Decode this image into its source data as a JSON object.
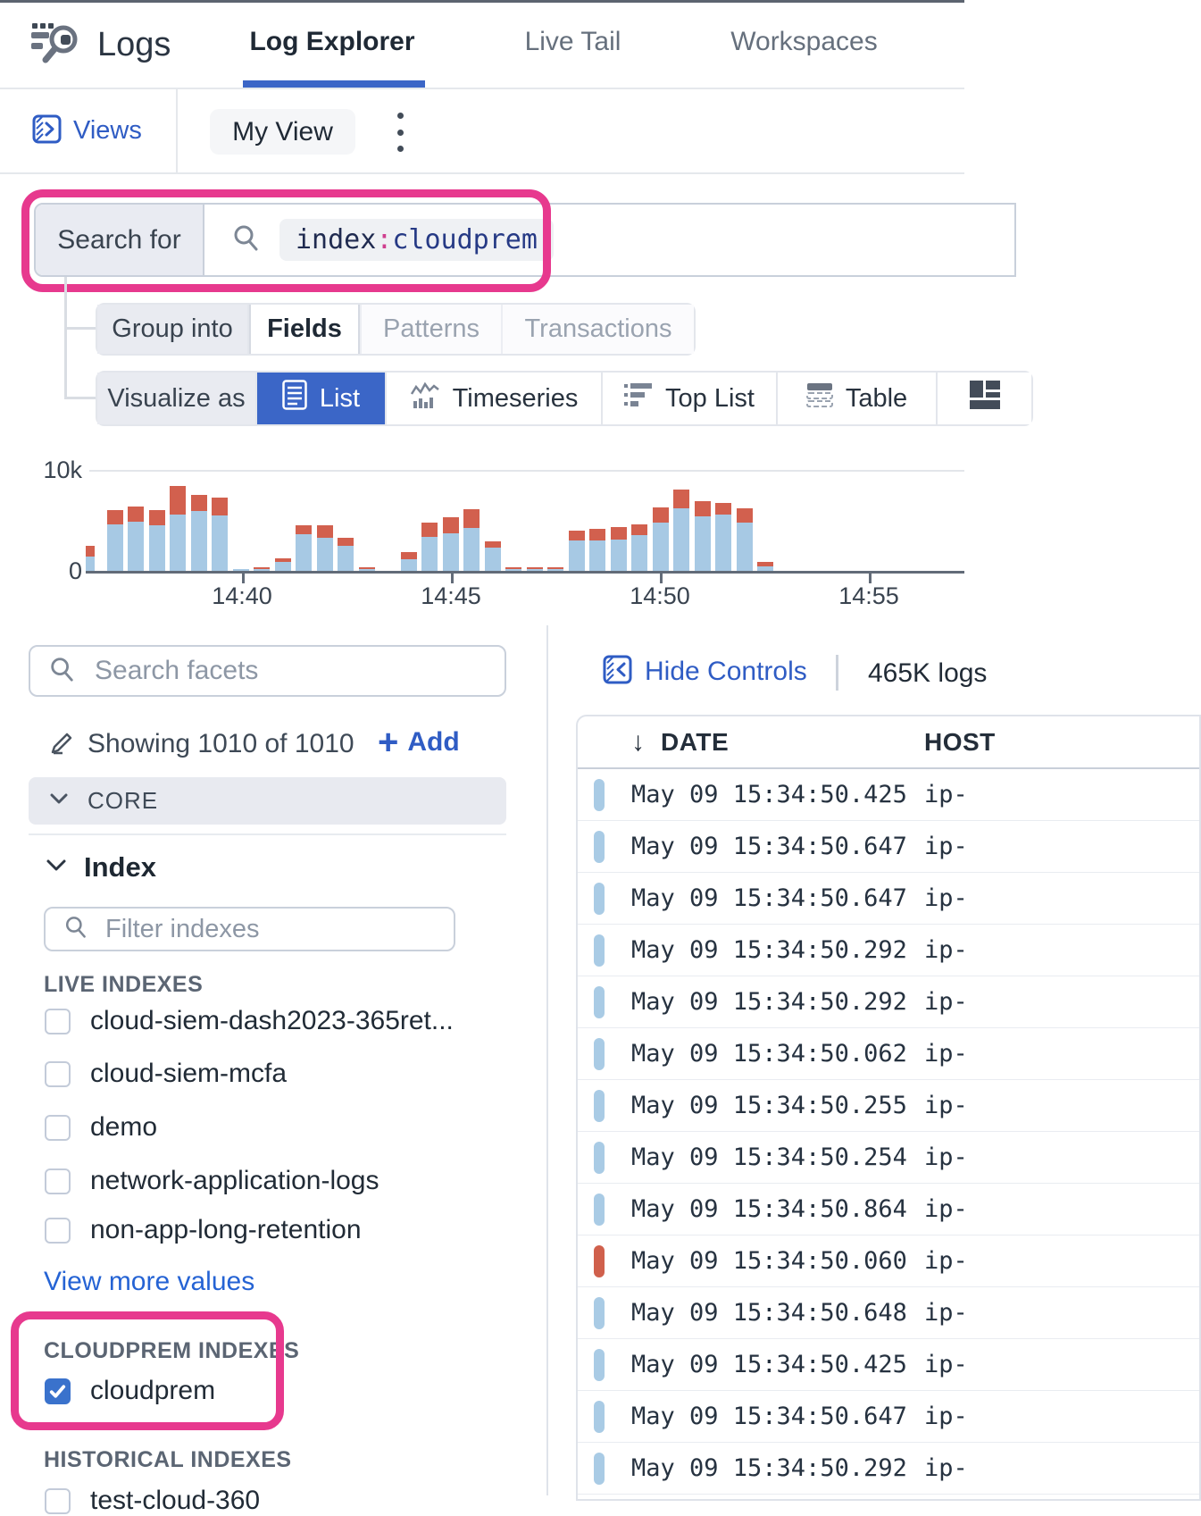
{
  "topnav": {
    "app_title": "Logs",
    "tabs": [
      {
        "label": "Log Explorer",
        "active": true
      },
      {
        "label": "Live Tail",
        "active": false
      },
      {
        "label": "Workspaces",
        "active": false
      }
    ]
  },
  "toolbar": {
    "views_label": "Views",
    "view_name": "My View"
  },
  "search": {
    "label": "Search for",
    "facet": "index",
    "separator": ":",
    "value": "cloudprem"
  },
  "group_row": {
    "label": "Group into",
    "options": [
      "Fields",
      "Patterns",
      "Transactions"
    ],
    "active": "Fields"
  },
  "viz_row": {
    "label": "Visualize as",
    "options": [
      "List",
      "Timeseries",
      "Top List",
      "Table"
    ],
    "active": "List"
  },
  "chart_data": {
    "type": "bar",
    "stacked": true,
    "ylim": [
      0,
      10000
    ],
    "y_tick_labels": [
      "0",
      "10k"
    ],
    "x_ticks": [
      "14:40",
      "14:45",
      "14:50",
      "14:55"
    ],
    "legend": "none",
    "series": [
      {
        "name": "info",
        "color": "#a7c9e4",
        "values": [
          1400,
          4500,
          4800,
          4400,
          5500,
          5800,
          5400,
          150,
          50,
          900,
          3600,
          3200,
          2400,
          50,
          0,
          1150,
          3300,
          3650,
          4200,
          2300,
          80,
          80,
          150,
          2950,
          2950,
          3000,
          3450,
          4700,
          6050,
          5300,
          5500,
          4700,
          400
        ]
      },
      {
        "name": "error",
        "color": "#d2604e",
        "values": [
          1000,
          1400,
          1500,
          1500,
          2800,
          1600,
          1700,
          0,
          150,
          350,
          900,
          1200,
          800,
          100,
          0,
          700,
          1400,
          1550,
          1850,
          650,
          70,
          70,
          150,
          950,
          1100,
          1200,
          1050,
          1500,
          1850,
          1500,
          1100,
          1350,
          400
        ]
      }
    ]
  },
  "facets": {
    "search_placeholder": "Search facets",
    "showing_text": "Showing 1010 of 1010",
    "add_label": "Add",
    "core_label": "CORE",
    "index_title": "Index",
    "filter_placeholder": "Filter indexes",
    "live_group_label": "LIVE INDEXES",
    "live_items": [
      {
        "label": "cloud-siem-dash2023-365ret...",
        "checked": false
      },
      {
        "label": "cloud-siem-mcfa",
        "checked": false
      },
      {
        "label": "demo",
        "checked": false
      },
      {
        "label": "network-application-logs",
        "checked": false
      },
      {
        "label": "non-app-long-retention",
        "checked": false
      }
    ],
    "view_more_label": "View more values",
    "cloudprem_group_label": "CLOUDPREM INDEXES",
    "cloudprem_items": [
      {
        "label": "cloudprem",
        "checked": true
      }
    ],
    "historical_group_label": "HISTORICAL INDEXES",
    "historical_items": [
      {
        "label": "test-cloud-360",
        "checked": false
      }
    ]
  },
  "results": {
    "hide_controls_label": "Hide Controls",
    "count_label": "465K logs",
    "columns": {
      "date": "DATE",
      "host": "HOST"
    },
    "rows": [
      {
        "date": "May 09 15:34:50.425",
        "host": "ip-",
        "status": "info"
      },
      {
        "date": "May 09 15:34:50.647",
        "host": "ip-",
        "status": "info"
      },
      {
        "date": "May 09 15:34:50.647",
        "host": "ip-",
        "status": "info"
      },
      {
        "date": "May 09 15:34:50.292",
        "host": "ip-",
        "status": "info"
      },
      {
        "date": "May 09 15:34:50.292",
        "host": "ip-",
        "status": "info"
      },
      {
        "date": "May 09 15:34:50.062",
        "host": "ip-",
        "status": "info"
      },
      {
        "date": "May 09 15:34:50.255",
        "host": "ip-",
        "status": "info"
      },
      {
        "date": "May 09 15:34:50.254",
        "host": "ip-",
        "status": "info"
      },
      {
        "date": "May 09 15:34:50.864",
        "host": "ip-",
        "status": "info"
      },
      {
        "date": "May 09 15:34:50.060",
        "host": "ip-",
        "status": "error"
      },
      {
        "date": "May 09 15:34:50.648",
        "host": "ip-",
        "status": "info"
      },
      {
        "date": "May 09 15:34:50.425",
        "host": "ip-",
        "status": "info"
      },
      {
        "date": "May 09 15:34:50.647",
        "host": "ip-",
        "status": "info"
      },
      {
        "date": "May 09 15:34:50.292",
        "host": "ip-",
        "status": "info"
      }
    ]
  },
  "colors": {
    "accent_blue": "#3b66c7",
    "link_blue": "#2f5cc4",
    "annotation_pink": "#e7398e",
    "bar_info": "#a7c9e4",
    "bar_error": "#d2604e"
  }
}
